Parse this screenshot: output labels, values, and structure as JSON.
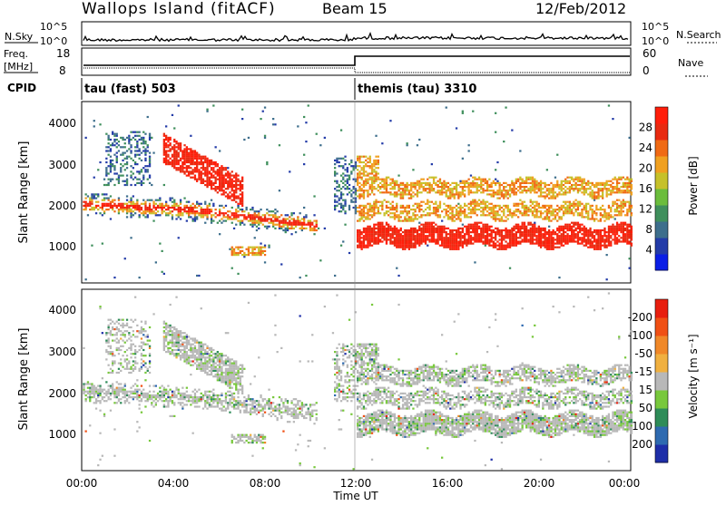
{
  "header": {
    "site": "Wallops Island (fitACF)",
    "beam": "Beam 15",
    "date": "12/Feb/2012"
  },
  "noise_panel": {
    "left_label": "N.Sky",
    "right_label": "N.Search",
    "left_ticks": [
      "10^5",
      "10^0"
    ],
    "right_ticks": [
      "10^5",
      "10^0"
    ]
  },
  "freq_panel": {
    "left_label_top": "Freq.",
    "left_label_unit": "[MHz]",
    "right_label": "Nave",
    "left_ticks": [
      "18",
      "8"
    ],
    "right_ticks": [
      "60",
      "0"
    ]
  },
  "cpid": {
    "label": "CPID",
    "modes": [
      {
        "name": "tau (fast) 503"
      },
      {
        "name": "themis (tau) 3310"
      }
    ]
  },
  "chart_data": [
    {
      "type": "heatmap",
      "title": "",
      "ylabel": "Slant Range [km]",
      "y_ticks": [
        "1000",
        "2000",
        "3000",
        "4000"
      ],
      "x_ticks": [],
      "colorbar": {
        "label": "Power [dB]",
        "ticks": [
          "4",
          "8",
          "12",
          "16",
          "20",
          "24",
          "28"
        ],
        "colors": [
          "#0a1ee6",
          "#243ca8",
          "#3d6e8c",
          "#3f8f5c",
          "#6bbd3c",
          "#c6c12a",
          "#f0a020",
          "#f06a14",
          "#e82a10",
          "#ff1e0a"
        ]
      },
      "ylim": [
        180,
        4500
      ]
    },
    {
      "type": "heatmap",
      "title": "",
      "ylabel": "Slant Range [km]",
      "y_ticks": [
        "1000",
        "2000",
        "3000",
        "4000"
      ],
      "xlabel": "Time UT",
      "x_ticks": [
        "00:00",
        "04:00",
        "08:00",
        "12:00",
        "16:00",
        "20:00",
        "00:00"
      ],
      "colorbar": {
        "label": "Velocity [m s⁻¹]",
        "ticks": [
          "200",
          "100",
          "50",
          "15",
          "-15",
          "-50",
          "-100",
          "-200"
        ],
        "colors": [
          "#1e2ea8",
          "#2e6ab0",
          "#2e8c58",
          "#78c83c",
          "#b8b8b8",
          "#f0b040",
          "#f08828",
          "#f05014",
          "#e81e0e"
        ]
      },
      "ylim": [
        180,
        4500
      ]
    }
  ]
}
